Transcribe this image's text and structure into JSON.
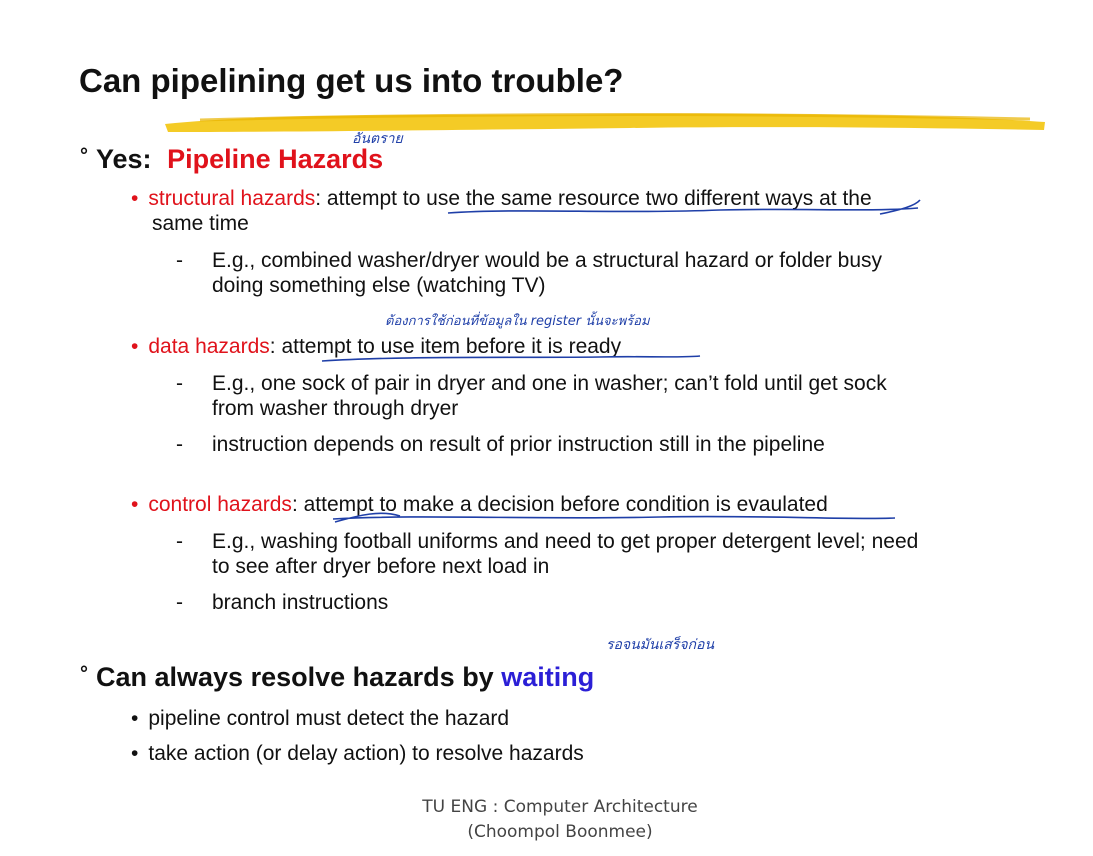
{
  "slide": {
    "title": "Can pipelining get us into trouble?",
    "yes_prefix": "Yes:",
    "yes_highlight": "Pipeline Hazards",
    "structural": {
      "term": "structural hazards",
      "rest_line1": ": attempt to use the same resource two different ways at the",
      "rest_line2": "same time",
      "example_line1": "E.g., combined washer/dryer would be a structural hazard or folder busy",
      "example_line2": "doing something else (watching TV)"
    },
    "data": {
      "term": "data hazards",
      "rest": ": attempt to use item before it is ready",
      "example_line1": "E.g., one sock of pair in dryer and one in washer; can’t fold until get sock",
      "example_line2": "from washer through dryer",
      "example2": "instruction depends on result of prior instruction still in the pipeline"
    },
    "control": {
      "term": "control hazards",
      "rest": ": attempt to make a decision before condition is evaulated",
      "example_line1": "E.g., washing football uniforms and need to get proper detergent level; need",
      "example_line2": "to see after dryer before next load in",
      "example2": "branch instructions"
    },
    "resolve_prefix": "Can always resolve hazards by ",
    "resolve_highlight": "waiting",
    "resolve_items": [
      "pipeline control must detect the hazard",
      "take action (or delay action) to resolve hazards"
    ],
    "dash": "-",
    "degree": "°",
    "bullet": "•"
  },
  "handwritten": {
    "note_hazard": "อันตราย",
    "note_data": "ต้องการใช้ก่อนที่ข้อมูลใน register นั้นจะพร้อม",
    "note_wait": "รอจนมันเสร็จก่อน"
  },
  "footer": {
    "line1": "TU ENG : Computer Architecture",
    "line2": "(Choompol Boonmee)"
  },
  "colors": {
    "accent_red": "#e0121b",
    "accent_blue": "#2b1fd6",
    "highlighter": "#f2c200",
    "ink": "#1f3fa8"
  }
}
